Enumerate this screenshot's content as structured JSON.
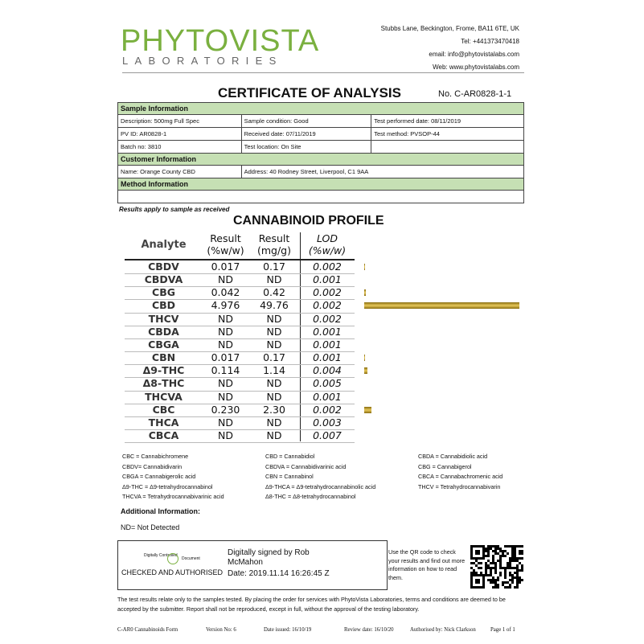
{
  "header": {
    "logo": "PHYTOVISTA",
    "logo_sub": "LABORATORIES",
    "contact": [
      "Stubbs Lane, Beckington, Frome, BA11 6TE, UK",
      "Tel: +441373470418",
      "email: info@phytovistalabs.com",
      "Web: www.phytovistalabs.com"
    ]
  },
  "title": "CERTIFICATE OF ANALYSIS",
  "certificate_no": "No. C-AR0828-1-1",
  "sample_info": {
    "heading": "Sample Information",
    "rows": [
      [
        "Description: 500mg Full Spec",
        "Sample condition: Good",
        "Test performed date: 08/11/2019"
      ],
      [
        "PV ID: AR0828-1",
        "Received date: 07/11/2019",
        "Test method: PVSOP-44"
      ],
      [
        "Batch no: 3810",
        "Test location: On Site"
      ]
    ]
  },
  "customer_info": {
    "heading": "Customer Information",
    "rows": [
      [
        "Name: Orange County CBD",
        "Address: 40 Rodney Street, Liverpool, C1 9AA"
      ]
    ]
  },
  "method_info": {
    "heading": "Method Information"
  },
  "note": "Results apply to sample as received",
  "profile": {
    "title": "CANNABINOID PROFILE",
    "columns": [
      "Analyte",
      "Result (%w/w)",
      "Result (mg/g)",
      "LOD (%w/w)"
    ],
    "rows": [
      {
        "analyte": "CBDV",
        "result_pct": "0.017",
        "result_mgg": "0.17",
        "lod": "0.002"
      },
      {
        "analyte": "CBDVA",
        "result_pct": "ND",
        "result_mgg": "ND",
        "lod": "0.001"
      },
      {
        "analyte": "CBG",
        "result_pct": "0.042",
        "result_mgg": "0.42",
        "lod": "0.002"
      },
      {
        "analyte": "CBD",
        "result_pct": "4.976",
        "result_mgg": "49.76",
        "lod": "0.002"
      },
      {
        "analyte": "THCV",
        "result_pct": "ND",
        "result_mgg": "ND",
        "lod": "0.002"
      },
      {
        "analyte": "CBDA",
        "result_pct": "ND",
        "result_mgg": "ND",
        "lod": "0.001"
      },
      {
        "analyte": "CBGA",
        "result_pct": "ND",
        "result_mgg": "ND",
        "lod": "0.001"
      },
      {
        "analyte": "CBN",
        "result_pct": "0.017",
        "result_mgg": "0.17",
        "lod": "0.001"
      },
      {
        "analyte": "Δ9-THC",
        "result_pct": "0.114",
        "result_mgg": "1.14",
        "lod": "0.004"
      },
      {
        "analyte": "Δ8-THC",
        "result_pct": "ND",
        "result_mgg": "ND",
        "lod": "0.005"
      },
      {
        "analyte": "THCVA",
        "result_pct": "ND",
        "result_mgg": "ND",
        "lod": "0.001"
      },
      {
        "analyte": "CBC",
        "result_pct": "0.230",
        "result_mgg": "2.30",
        "lod": "0.002"
      },
      {
        "analyte": "THCA",
        "result_pct": "ND",
        "result_mgg": "ND",
        "lod": "0.003"
      },
      {
        "analyte": "CBCA",
        "result_pct": "ND",
        "result_mgg": "ND",
        "lod": "0.007"
      }
    ]
  },
  "abbreviations": [
    [
      "CBC =  Cannabichromene",
      "CBD =    Cannabidiol",
      "CBDA = Cannabidiolic acid"
    ],
    [
      "CBDV=  Cannabidivarin",
      "CBDVA = Cannabidivarinic acid",
      "CBG =  Cannabigerol"
    ],
    [
      "CBGA = Cannabigerolic acid",
      "CBN =    Cannabinol",
      "CBCA = Cannabachromenic acid"
    ],
    [
      "Δ9-THC = Δ9-tetrahydrocannabinol",
      "Δ9-THCA = Δ9-tetrahydrocannabinolic acid",
      "THCV = Tetrahydrocannabivarin"
    ],
    [
      "THCVA = Tetrahydrocannabivarinic acid",
      "Δ8-THC = Δ8-tetrahydrocannabinol"
    ]
  ],
  "additional_info": "Additional Information:",
  "nd_note": "ND= Not Detected",
  "signature": {
    "stamp_left": "Digitally Controlled",
    "stamp_right": "Document",
    "stamp_caption": "CHECKED AND AUTHORISED",
    "signed_by": "Digitally signed by Rob McMahon",
    "date": "Date: 2019.11.14 16:26:45 Z"
  },
  "qr_text": "Use the QR code to check your results and find out more information on how to read them.",
  "disclaimer": "The test results relate only to the samples tested.  By placing the order for services with PhytoVista Laboratories, terms and conditions are deemed to be accepted by the submitter. Report shall not be reproduced, except in full, without the approval of the testing laboratory.",
  "footer": [
    "C-AR0 Cannabinoids Form",
    "Version No:  6",
    "Date issued: 16/10/19",
    "Review date: 16/10/20",
    "Authorised by: Nick Clarkson",
    "Page 1 of 1"
  ]
}
